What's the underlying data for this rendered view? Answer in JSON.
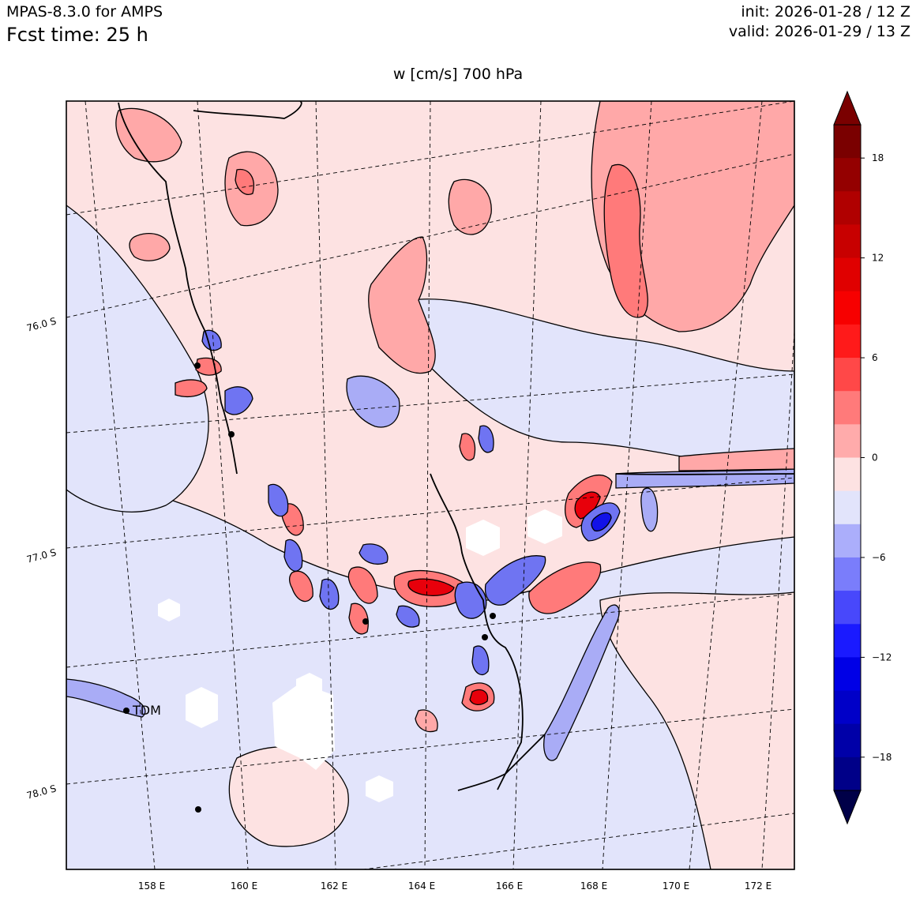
{
  "header": {
    "model": "MPAS-8.3.0 for AMPS",
    "forecast": "Fcst time:   25 h",
    "init": "init: 2026-01-28 / 12 Z",
    "valid": "valid: 2026-01-29 / 13 Z"
  },
  "title": "w [cm/s]    700 hPa",
  "map": {
    "lon_labels": [
      "158 E",
      "160 E",
      "162 E",
      "164 E",
      "166 E",
      "168 E",
      "170 E",
      "172 E"
    ],
    "lat_labels": [
      "76.0 S",
      "77.0 S",
      "78.0 S"
    ],
    "station_label": "TDM",
    "colors": {
      "strong_up": "#e8000b",
      "up": "#ff7a7a",
      "weak_up": "#ffa8a8",
      "near_zero_up": "#fde2e2",
      "near_zero_down": "#e2e4fb",
      "weak_down": "#a9acf6",
      "down": "#6f74f2",
      "strong_down": "#1212e8",
      "terrain_mask": "#ffffff"
    }
  },
  "colorbar": {
    "levels": [
      -20,
      -18,
      -16,
      -14,
      -12,
      -10,
      -8,
      -6,
      -4,
      -2,
      0,
      2,
      4,
      6,
      8,
      10,
      12,
      14,
      16,
      18,
      20
    ],
    "tick_labels": [
      "18",
      "12",
      "6",
      "0",
      "−12",
      "−18",
      "−6"
    ],
    "colors_top_to_bottom": [
      "#7a0000",
      "#940000",
      "#b00000",
      "#c80000",
      "#e00000",
      "#f70000",
      "#ff1a1a",
      "#ff4848",
      "#ff7a7a",
      "#ffabab",
      "#fde2e2",
      "#e2e4fb",
      "#abaefb",
      "#7a7dfb",
      "#4848fb",
      "#1a1aff",
      "#0000e6",
      "#0000c8",
      "#0000a8",
      "#000088",
      "#00006a",
      "#00004a"
    ],
    "extend_top": "#7a0000",
    "extend_bottom": "#000048"
  }
}
